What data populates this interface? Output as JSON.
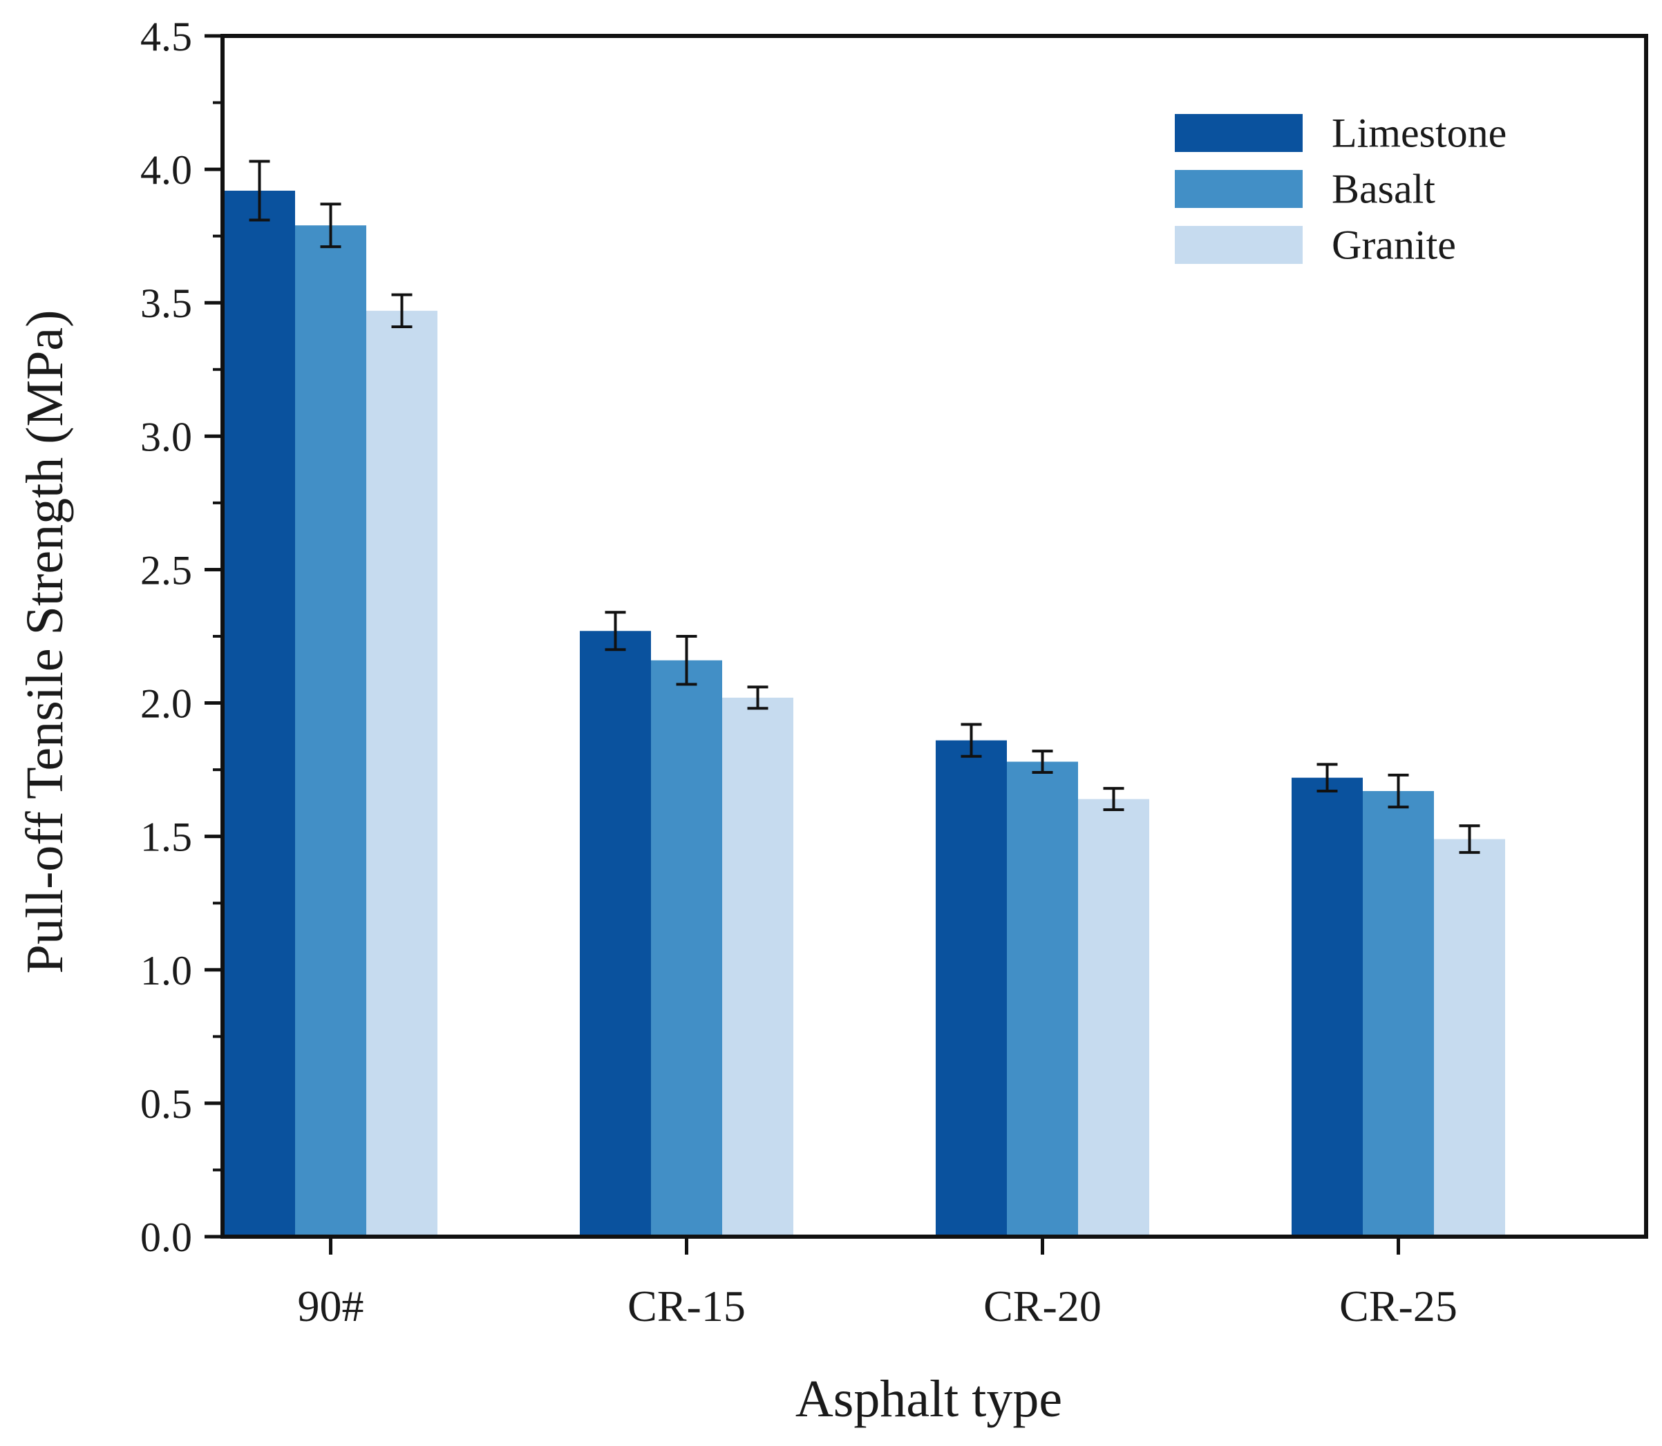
{
  "chart_data": {
    "type": "bar",
    "title": "",
    "xlabel": "Asphalt type",
    "ylabel": "Pull-off Tensile Strength (MPa)",
    "categories": [
      "90#",
      "CR-15",
      "CR-20",
      "CR-25"
    ],
    "ylim": [
      0,
      4.5
    ],
    "yticks": [
      "0.0",
      "0.5",
      "1.0",
      "1.5",
      "2.0",
      "2.5",
      "3.0",
      "3.5",
      "4.0",
      "4.5"
    ],
    "legend_position": "top-right",
    "series": [
      {
        "name": "Limestone",
        "color": "#0A529E",
        "values": [
          3.92,
          2.27,
          1.86,
          1.72
        ],
        "errors": [
          0.11,
          0.07,
          0.06,
          0.05
        ]
      },
      {
        "name": "Basalt",
        "color": "#428FC6",
        "values": [
          3.79,
          2.16,
          1.78,
          1.67
        ],
        "errors": [
          0.08,
          0.09,
          0.04,
          0.06
        ]
      },
      {
        "name": "Granite",
        "color": "#C6DBEF",
        "values": [
          3.47,
          2.02,
          1.64,
          1.49
        ],
        "errors": [
          0.06,
          0.04,
          0.04,
          0.05
        ]
      }
    ]
  }
}
